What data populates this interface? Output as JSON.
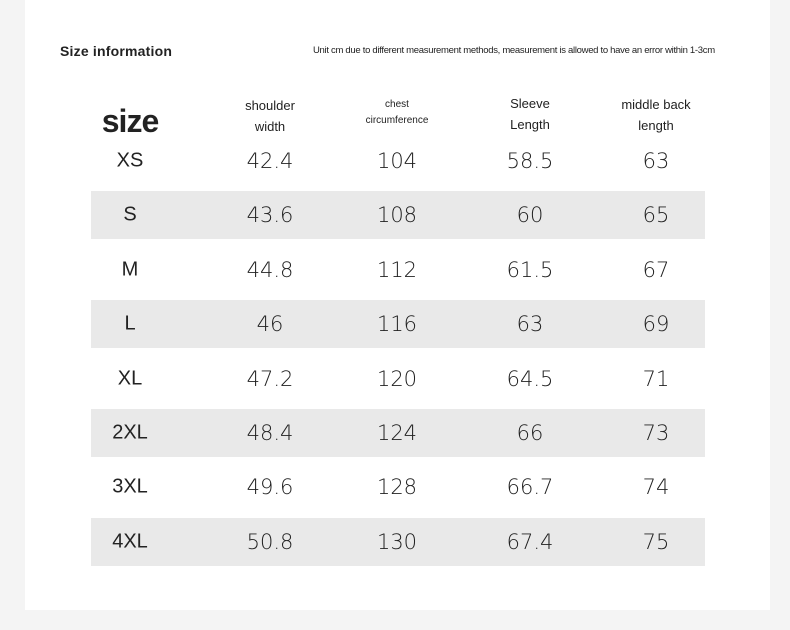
{
  "header": {
    "title": "Size information",
    "note": "Unit cm due to different measurement methods, measurement is allowed to have an error within 1-3cm"
  },
  "table": {
    "columns": [
      "size",
      "shoulder\nwidth",
      "chest\ncircumference",
      "Sleeve\nLength",
      "middle back\nlength"
    ],
    "rows": [
      [
        "XS",
        42.4,
        104,
        58.5,
        63
      ],
      [
        "S",
        43.6,
        108,
        60,
        65
      ],
      [
        "M",
        44.8,
        112,
        61.5,
        67
      ],
      [
        "L",
        46,
        116,
        63,
        69
      ],
      [
        "XL",
        47.2,
        120,
        64.5,
        71
      ],
      [
        "2XL",
        48.4,
        124,
        66,
        73
      ],
      [
        "3XL",
        49.6,
        128,
        66.7,
        74
      ],
      [
        "4XL",
        50.8,
        130,
        67.4,
        75
      ]
    ]
  }
}
